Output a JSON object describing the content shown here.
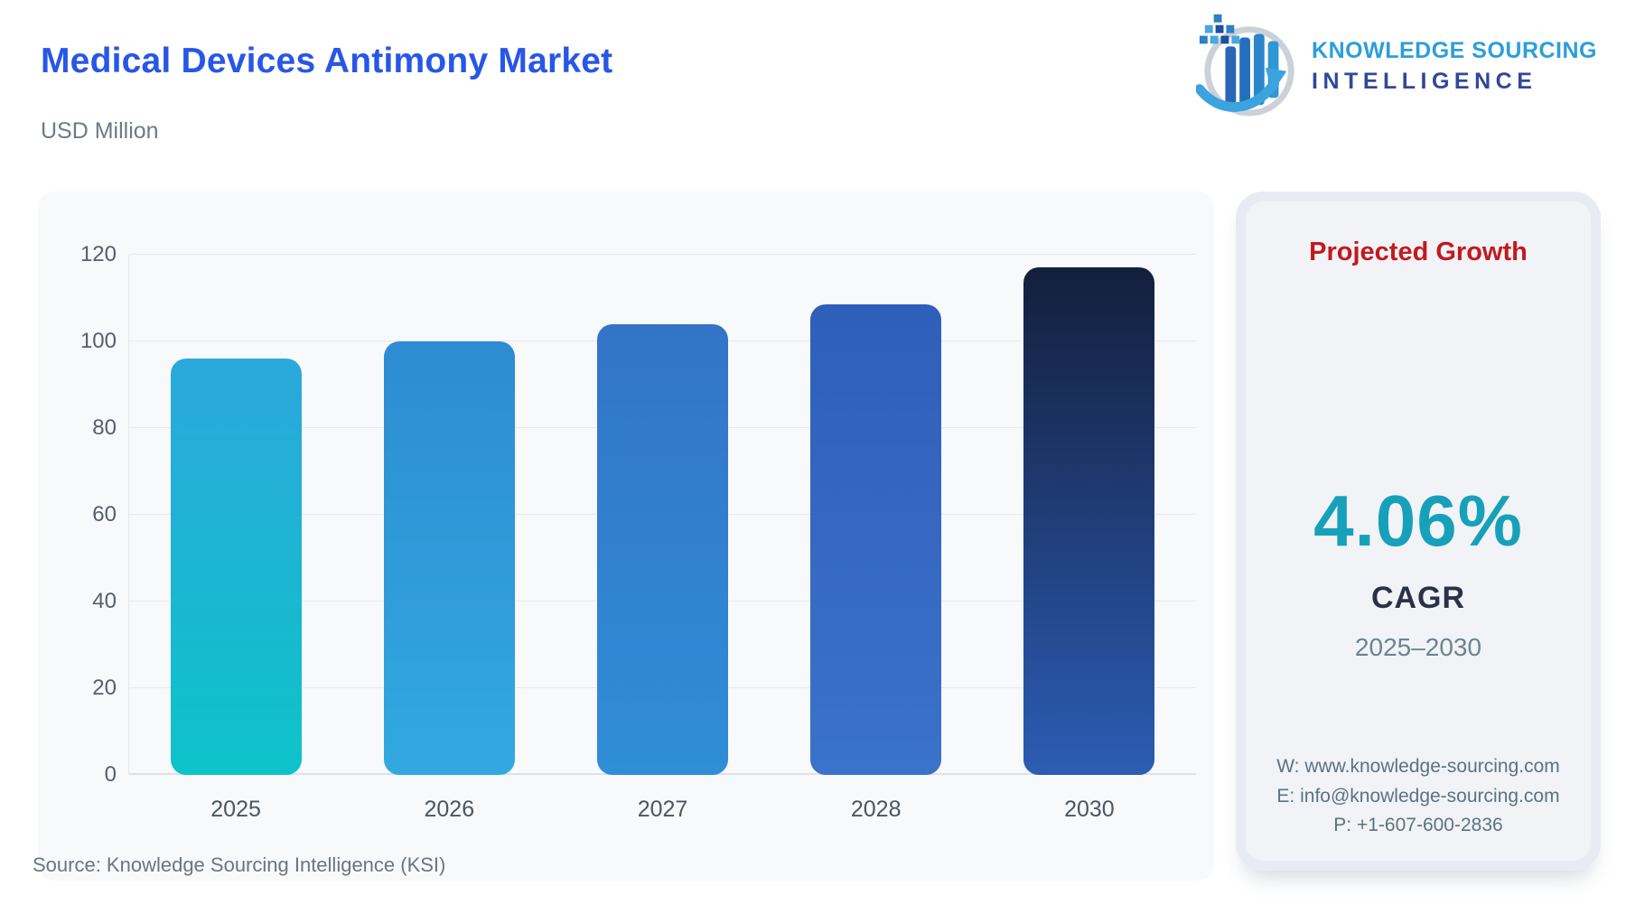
{
  "header": {
    "title": "Medical Devices Antimony Market",
    "subtitle": "USD Million"
  },
  "logo": {
    "line1": "KNOWLEDGE SOURCING",
    "line2": "INTELLIGENCE",
    "icon": "ksi-globe-bars-arrow-logo"
  },
  "chart_data": {
    "type": "bar",
    "title": "Medical Devices Antimony Market",
    "unit": "USD Million",
    "categories": [
      "2025",
      "2026",
      "2027",
      "2028",
      "2030"
    ],
    "values": [
      96,
      100,
      104,
      108.5,
      117
    ],
    "ylim": [
      0,
      120
    ],
    "ytick_step": 20,
    "yticks": [
      0,
      20,
      40,
      60,
      80,
      100,
      120
    ],
    "grid": true,
    "legend": "none",
    "bar_colors": [
      [
        "#2ba8dc",
        "#0dc3c9"
      ],
      [
        "#2d8cd2",
        "#31a9e0"
      ],
      [
        "#3374c6",
        "#2f8ed6"
      ],
      [
        "#2e5fba",
        "#3b72ca"
      ],
      [
        "#131f3c",
        "#2c5cb4"
      ]
    ]
  },
  "panel": {
    "heading": "Projected Growth",
    "value": "4.06%",
    "label": "CAGR",
    "period": "2025–2030",
    "contacts": {
      "website": "W: www.knowledge-sourcing.com",
      "email": "E: info@knowledge-sourcing.com",
      "phone": "P: +1-607-600-2836"
    }
  },
  "source": "Source: Knowledge Sourcing Intelligence (KSI)",
  "colors": {
    "title_blue": "#2856e6",
    "accent_red": "#c21a1f",
    "accent_teal": "#17a0ba",
    "logo_light_blue": "#2d9ed9",
    "logo_navy": "#31479b",
    "card_bg": "#f8f9fb",
    "panel_bg": "#f1f3f7",
    "gridline": "#e8eaed"
  }
}
